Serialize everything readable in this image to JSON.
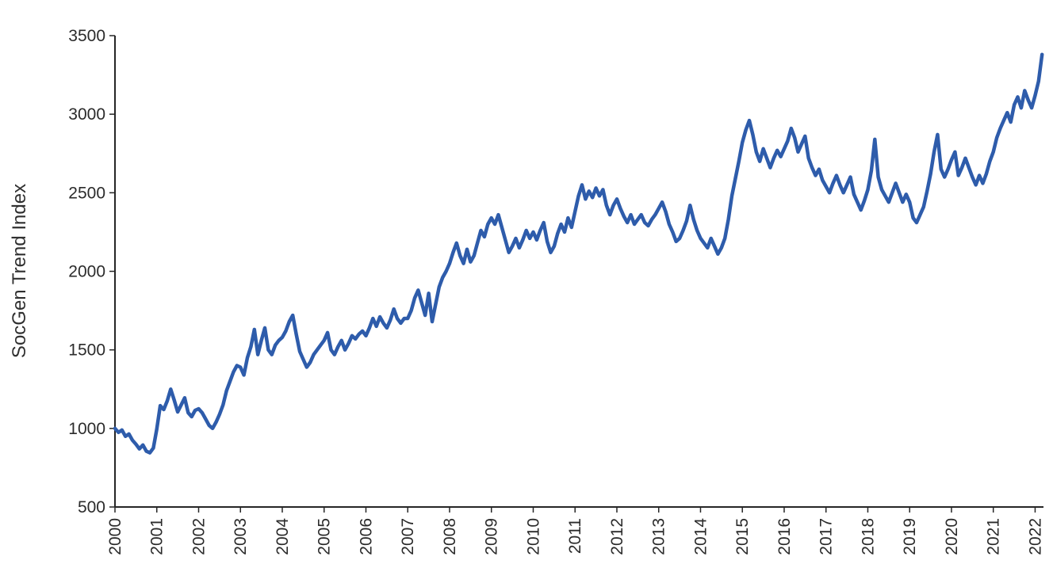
{
  "chart_data": {
    "type": "line",
    "title": "",
    "xlabel": "",
    "ylabel": "SocGen Trend Index",
    "series_name": "SocGen Trend Index",
    "frequency": "monthly",
    "start_year": 2000,
    "values": [
      1000,
      975,
      990,
      950,
      965,
      925,
      900,
      870,
      895,
      855,
      845,
      875,
      995,
      1145,
      1120,
      1175,
      1250,
      1180,
      1105,
      1150,
      1195,
      1100,
      1075,
      1115,
      1125,
      1100,
      1060,
      1020,
      1000,
      1040,
      1090,
      1150,
      1240,
      1300,
      1360,
      1400,
      1390,
      1340,
      1450,
      1520,
      1630,
      1470,
      1560,
      1640,
      1500,
      1470,
      1530,
      1560,
      1580,
      1620,
      1680,
      1720,
      1600,
      1490,
      1440,
      1390,
      1420,
      1470,
      1500,
      1530,
      1560,
      1610,
      1500,
      1470,
      1520,
      1560,
      1500,
      1540,
      1590,
      1570,
      1600,
      1620,
      1590,
      1640,
      1700,
      1650,
      1710,
      1670,
      1640,
      1690,
      1760,
      1700,
      1670,
      1700,
      1700,
      1750,
      1830,
      1880,
      1800,
      1720,
      1860,
      1680,
      1790,
      1900,
      1960,
      2000,
      2050,
      2120,
      2180,
      2100,
      2050,
      2140,
      2060,
      2100,
      2180,
      2260,
      2220,
      2300,
      2340,
      2300,
      2360,
      2280,
      2200,
      2120,
      2160,
      2210,
      2150,
      2200,
      2260,
      2210,
      2250,
      2200,
      2260,
      2310,
      2190,
      2120,
      2160,
      2240,
      2300,
      2250,
      2340,
      2280,
      2380,
      2480,
      2550,
      2460,
      2510,
      2470,
      2530,
      2480,
      2520,
      2420,
      2360,
      2420,
      2460,
      2400,
      2350,
      2310,
      2360,
      2300,
      2330,
      2360,
      2310,
      2290,
      2330,
      2360,
      2400,
      2440,
      2380,
      2300,
      2250,
      2190,
      2210,
      2260,
      2320,
      2420,
      2330,
      2260,
      2210,
      2180,
      2150,
      2210,
      2160,
      2110,
      2150,
      2210,
      2330,
      2480,
      2590,
      2700,
      2820,
      2900,
      2960,
      2870,
      2760,
      2700,
      2780,
      2720,
      2660,
      2720,
      2770,
      2730,
      2780,
      2830,
      2910,
      2850,
      2760,
      2810,
      2860,
      2720,
      2660,
      2610,
      2650,
      2580,
      2540,
      2500,
      2560,
      2610,
      2550,
      2500,
      2550,
      2600,
      2490,
      2440,
      2390,
      2450,
      2520,
      2640,
      2840,
      2600,
      2520,
      2480,
      2440,
      2500,
      2560,
      2500,
      2440,
      2490,
      2440,
      2340,
      2310,
      2360,
      2410,
      2510,
      2620,
      2760,
      2870,
      2650,
      2600,
      2650,
      2710,
      2760,
      2610,
      2660,
      2720,
      2660,
      2600,
      2550,
      2610,
      2560,
      2620,
      2700,
      2760,
      2850,
      2910,
      2960,
      3010,
      2950,
      3060,
      3110,
      3040,
      3150,
      3090,
      3040,
      3120,
      3210,
      3380
    ],
    "x_ticks": [
      2000,
      2001,
      2002,
      2003,
      2004,
      2005,
      2006,
      2007,
      2008,
      2009,
      2010,
      2011,
      2012,
      2013,
      2014,
      2015,
      2016,
      2017,
      2018,
      2019,
      2020,
      2021,
      2022
    ],
    "y_ticks": [
      500,
      1000,
      1500,
      2000,
      2500,
      3000,
      3500
    ],
    "xlim": [
      2000,
      2022.2
    ],
    "ylim": [
      500,
      3500
    ],
    "grid": "off",
    "legend": "none",
    "line_color": "#2e5cab",
    "axis_color": "#262626",
    "background": "#ffffff"
  }
}
